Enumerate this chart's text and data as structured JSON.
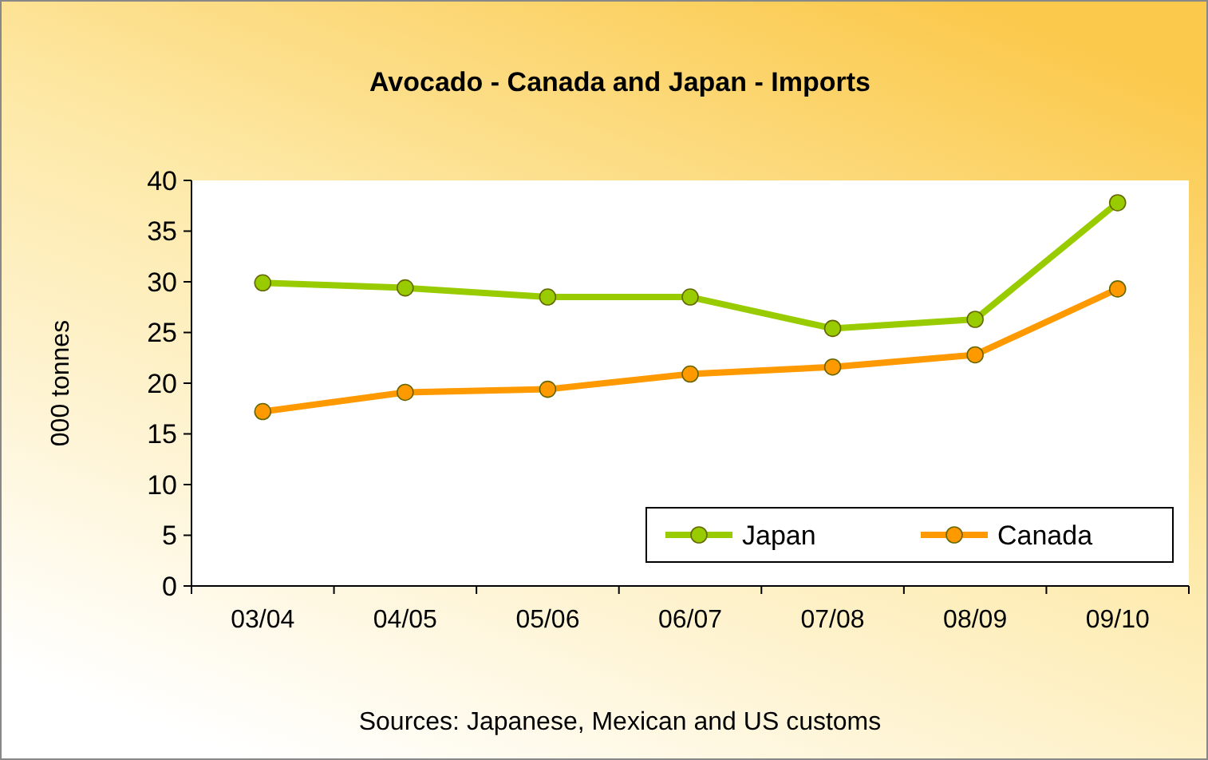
{
  "chart_data": {
    "type": "line",
    "title": "Avocado - Canada and Japan - Imports",
    "ylabel": "000 tonnes",
    "categories": [
      "03/04",
      "04/05",
      "05/06",
      "06/07",
      "07/08",
      "08/09",
      "09/10"
    ],
    "series": [
      {
        "name": "Japan",
        "color": "#99cc00",
        "values": [
          29.9,
          29.4,
          28.5,
          28.5,
          25.4,
          26.3,
          37.8
        ]
      },
      {
        "name": "Canada",
        "color": "#ff9900",
        "values": [
          17.2,
          19.1,
          19.4,
          20.9,
          21.6,
          22.8,
          29.3
        ]
      }
    ],
    "ylim": [
      0,
      40
    ],
    "yticks": [
      0,
      5,
      10,
      15,
      20,
      25,
      30,
      35,
      40
    ],
    "grid": false,
    "legend": "bottom right",
    "marker": "circle",
    "line_style": "solid",
    "annotations": [
      "Sources: Japanese, Mexican and US customs"
    ]
  }
}
